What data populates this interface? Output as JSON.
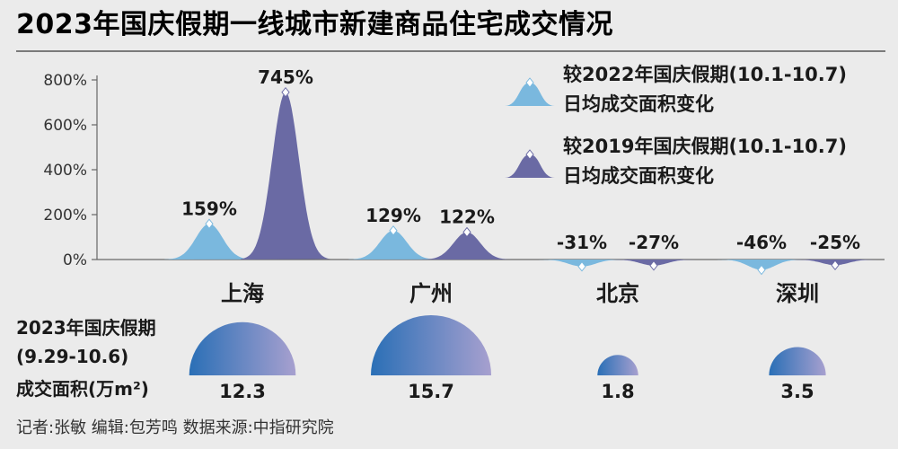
{
  "title": "2023年国庆假期一线城市新建商品住宅成交情况",
  "colors": {
    "series_2022": "#7ab8de",
    "series_2019": "#6a6aa4",
    "area_start": "#2a6fb6",
    "area_end": "#a7a0cf",
    "axis": "#666666",
    "title_rule": "#555555"
  },
  "chart_data": {
    "type": "area",
    "categories": [
      "上海",
      "广州",
      "北京",
      "深圳"
    ],
    "series": [
      {
        "name": "较2022年国庆假期(10.1-10.7)日均成交面积变化",
        "values": [
          159,
          129,
          -31,
          -46
        ],
        "labels": [
          "159%",
          "129%",
          "-31%",
          "-46%"
        ]
      },
      {
        "name": "较2019年国庆假期(10.1-10.7)日均成交面积变化",
        "values": [
          745,
          122,
          -27,
          -25
        ],
        "labels": [
          "745%",
          "122%",
          "-27%",
          "-25%"
        ]
      }
    ],
    "yticks": [
      "0%",
      "200%",
      "400%",
      "600%",
      "800%"
    ],
    "ytick_values": [
      0,
      200,
      400,
      600,
      800
    ],
    "ylim": [
      -60,
      800
    ],
    "legend": {
      "position": "top-right",
      "entries": [
        {
          "line1": "较2022年国庆假期(10.1-10.7)",
          "line2": "日均成交面积变化"
        },
        {
          "line1": "较2019年国庆假期(10.1-10.7)",
          "line2": "日均成交面积变化"
        }
      ]
    },
    "area_section": {
      "label_lines": [
        "2023年国庆假期",
        "(9.29-10.6)",
        "成交面积(万m²)"
      ],
      "values": [
        12.3,
        15.7,
        1.8,
        3.5
      ],
      "value_labels": [
        "12.3",
        "15.7",
        "1.8",
        "3.5"
      ]
    }
  },
  "credits": "记者:张敏   编辑:包芳鸣   数据来源:中指研究院"
}
